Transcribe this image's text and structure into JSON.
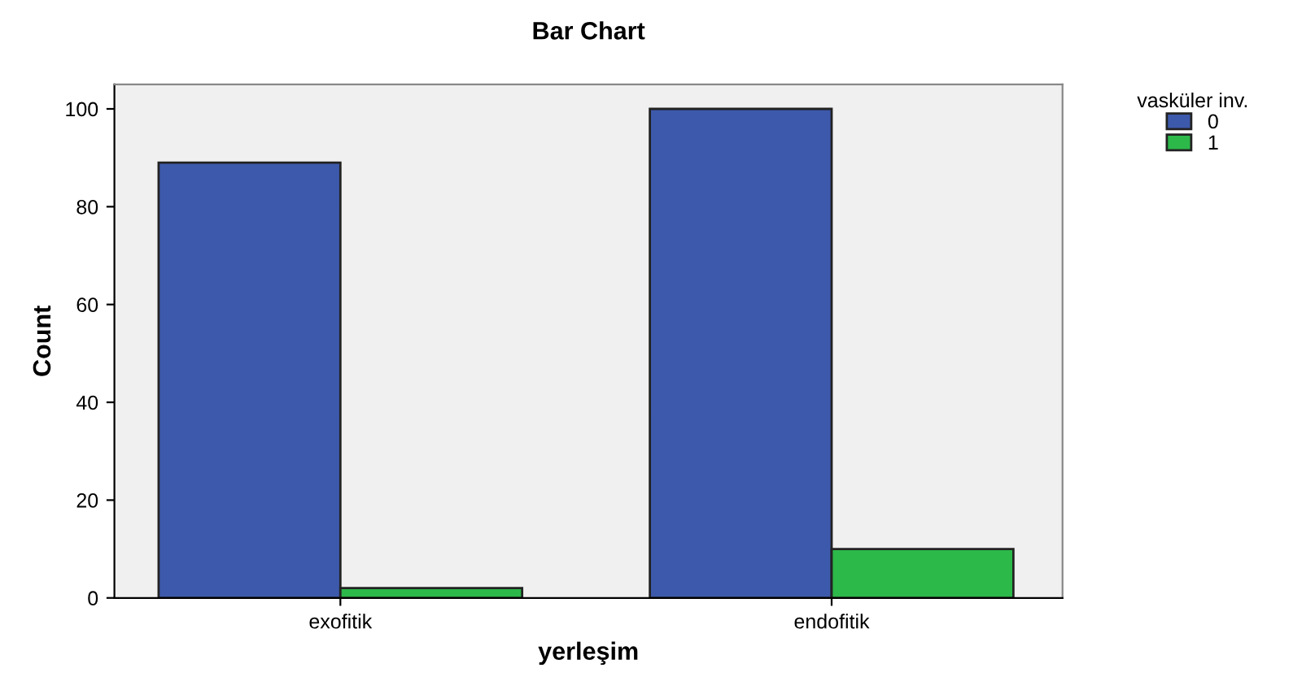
{
  "chart_data": {
    "type": "bar",
    "title": "Bar Chart",
    "xlabel": "yerleşim",
    "ylabel": "Count",
    "legend_title": "vasküler inv.",
    "categories": [
      "exofitik",
      "endofitik"
    ],
    "series": [
      {
        "name": "0",
        "color": "#3d59ab",
        "values": [
          89,
          100
        ]
      },
      {
        "name": "1",
        "color": "#2db84a",
        "values": [
          2,
          10
        ]
      }
    ],
    "ylim": [
      0,
      105
    ],
    "yticks": [
      0,
      20,
      40,
      60,
      80,
      100
    ],
    "grid": false,
    "legend": "top right"
  }
}
